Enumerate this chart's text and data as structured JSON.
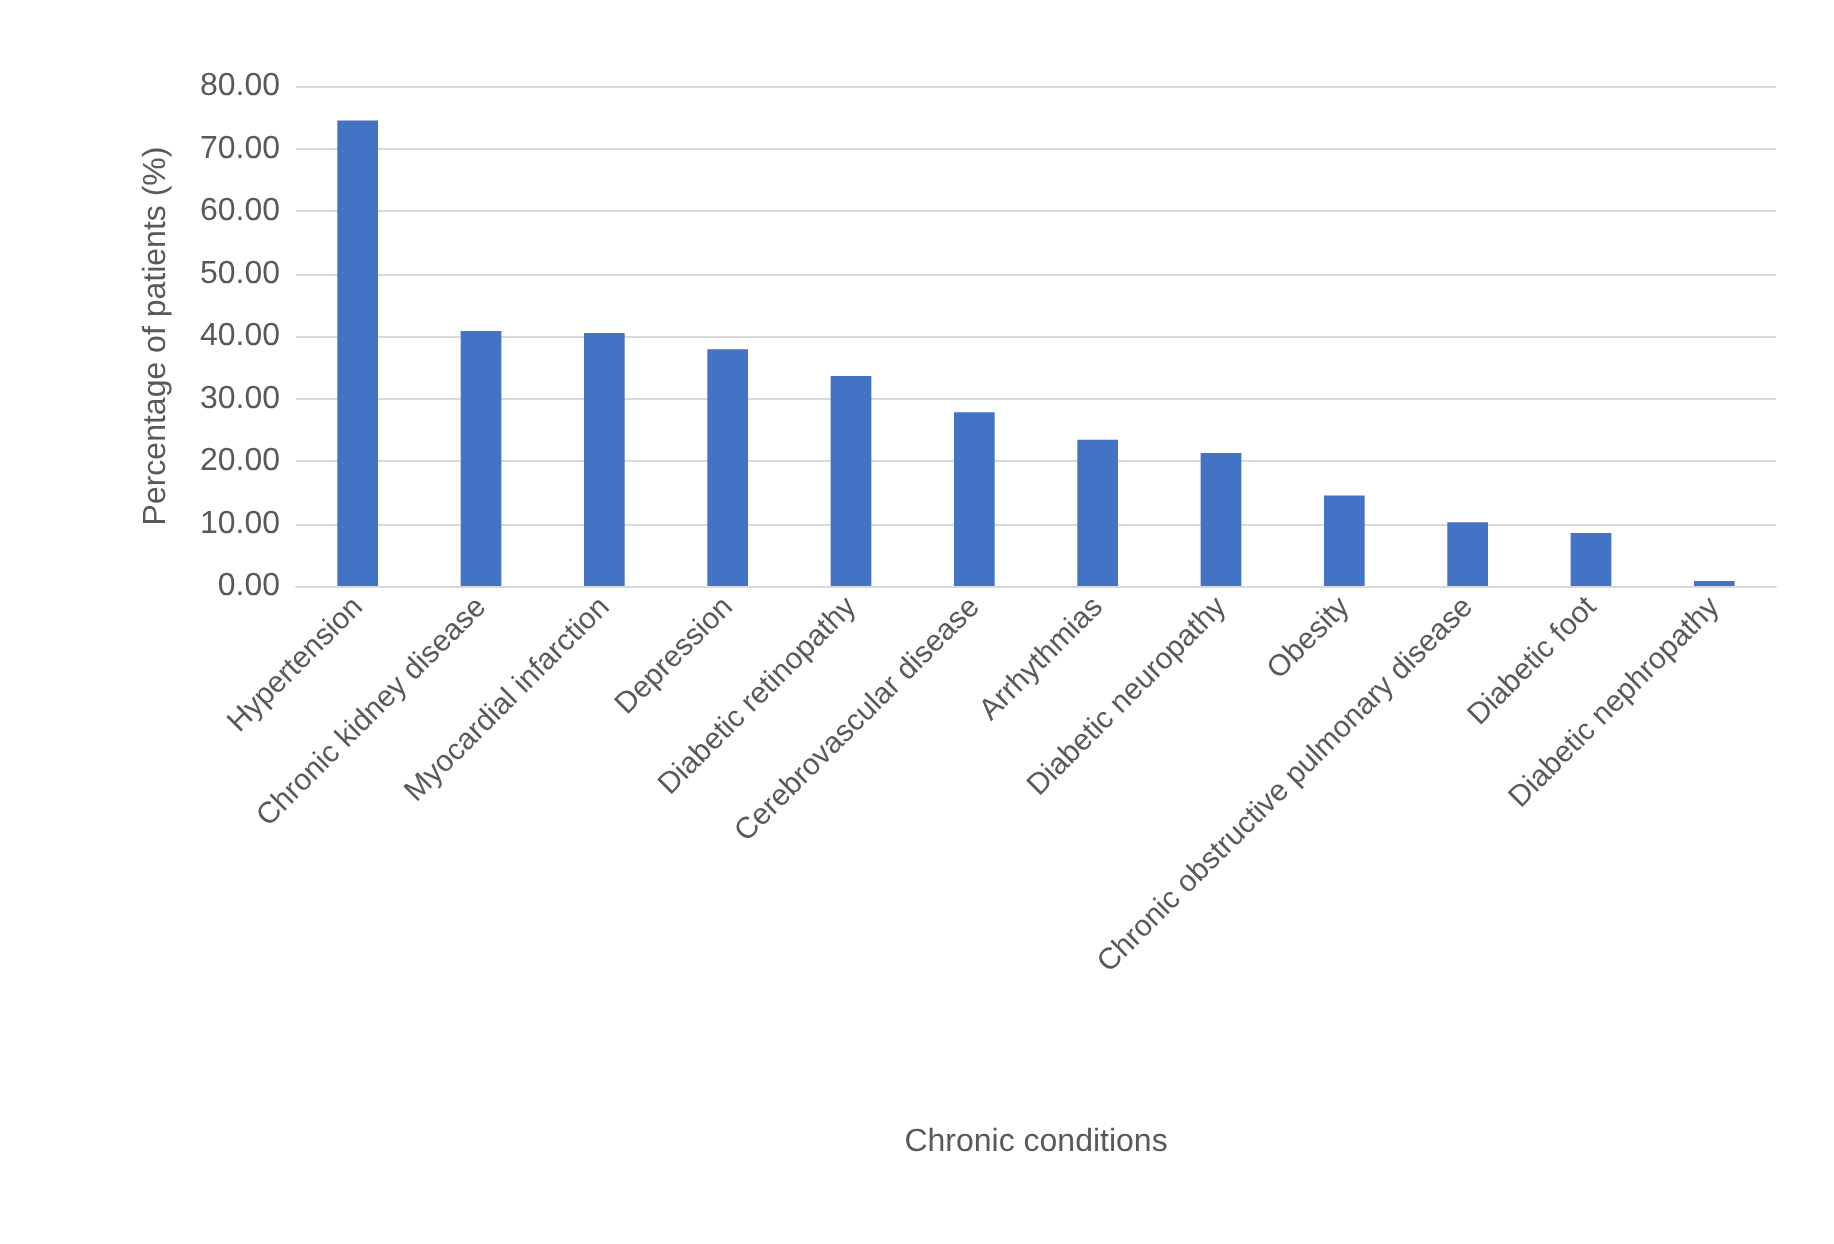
{
  "chart_data": {
    "type": "bar",
    "xlabel": "Chronic conditions",
    "ylabel": "Percentage of patients (%)",
    "categories": [
      "Hypertension",
      "Chronic kidney disease",
      "Myocardial infarction",
      "Depression",
      "Diabetic retinopathy",
      "Cerebrovascular disease",
      "Arrhythmias",
      "Diabetic neuropathy",
      "Obesity",
      "Chronic obstructive pulmonary disease",
      "Diabetic foot",
      "Diabetic nephropathy"
    ],
    "values": [
      74.5,
      40.8,
      40.5,
      37.9,
      33.6,
      27.8,
      23.4,
      21.3,
      14.5,
      10.2,
      8.5,
      0.8
    ],
    "color": "#4472c4",
    "ylim": [
      0,
      80
    ],
    "yticks": [
      {
        "value": 0,
        "label": "0.00"
      },
      {
        "value": 10,
        "label": "10.00"
      },
      {
        "value": 20,
        "label": "20.00"
      },
      {
        "value": 30,
        "label": "30.00"
      },
      {
        "value": 40,
        "label": "40.00"
      },
      {
        "value": 50,
        "label": "50.00"
      },
      {
        "value": 60,
        "label": "60.00"
      },
      {
        "value": 70,
        "label": "70.00"
      },
      {
        "value": 80,
        "label": "80.00"
      }
    ],
    "grid": "y"
  }
}
